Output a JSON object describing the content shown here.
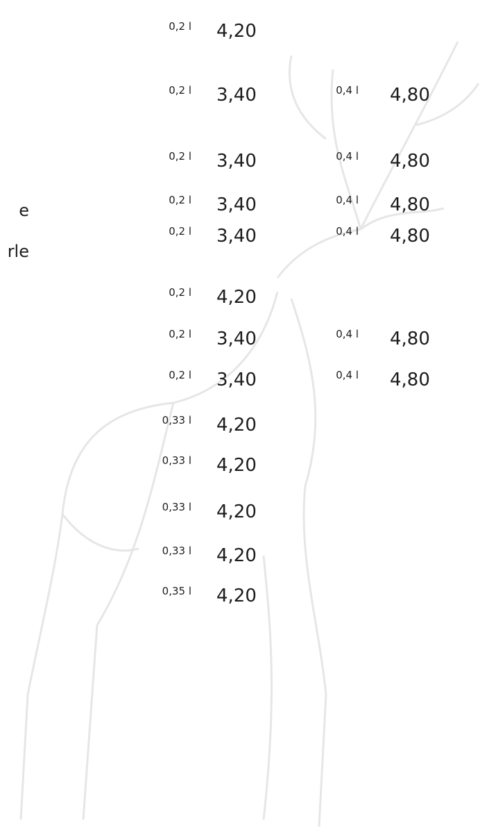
{
  "side_texts": [
    "e",
    "rle"
  ],
  "rows": [
    {
      "items": [
        {
          "volume": "0,2 l",
          "price": "4,20"
        }
      ]
    },
    {
      "items": [
        {
          "volume": "0,2 l",
          "price": "3,40"
        },
        {
          "volume": "0,4 l",
          "price": "4,80"
        }
      ]
    },
    {
      "items": [
        {
          "volume": "0,2 l",
          "price": "3,40"
        },
        {
          "volume": "0,4 l",
          "price": "4,80"
        }
      ]
    },
    {
      "items": [
        {
          "volume": "0,2 l",
          "price": "3,40"
        },
        {
          "volume": "0,4 l",
          "price": "4,80"
        }
      ]
    },
    {
      "items": [
        {
          "volume": "0,2 l",
          "price": "3,40"
        },
        {
          "volume": "0,4 l",
          "price": "4,80"
        }
      ]
    },
    {
      "items": [
        {
          "volume": "0,2 l",
          "price": "4,20"
        }
      ]
    },
    {
      "items": [
        {
          "volume": "0,2 l",
          "price": "3,40"
        },
        {
          "volume": "0,4 l",
          "price": "4,80"
        }
      ]
    },
    {
      "items": [
        {
          "volume": "0,2 l",
          "price": "3,40"
        },
        {
          "volume": "0,4 l",
          "price": "4,80"
        }
      ]
    },
    {
      "items": [
        {
          "volume": "0,33 l",
          "price": "4,20"
        }
      ]
    },
    {
      "items": [
        {
          "volume": "0,33 l",
          "price": "4,20"
        }
      ]
    },
    {
      "items": [
        {
          "volume": "0,33 l",
          "price": "4,20"
        }
      ]
    },
    {
      "items": [
        {
          "volume": "0,33 l",
          "price": "4,20"
        }
      ]
    },
    {
      "items": [
        {
          "volume": "0,35 l",
          "price": "4,20"
        }
      ]
    }
  ]
}
